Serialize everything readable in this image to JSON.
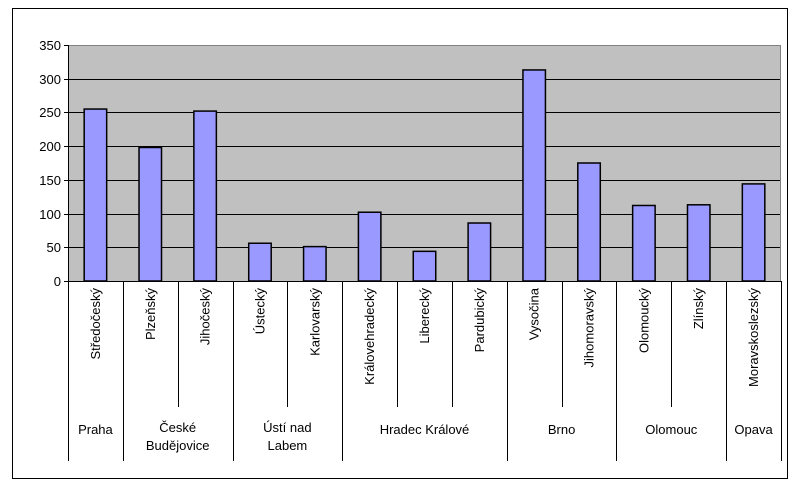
{
  "chart_data": {
    "type": "bar",
    "title": "",
    "xlabel": "",
    "ylabel": "",
    "ylim": [
      0,
      350
    ],
    "yticks": [
      0,
      50,
      100,
      150,
      200,
      250,
      300,
      350
    ],
    "grid": true,
    "legend": "none",
    "categories": [
      "Středočeský",
      "Plzeňský",
      "Jihočeský",
      "Ústecký",
      "Karlovarský",
      "Královehradecký",
      "Liberecký",
      "Pardubický",
      "Vysočina",
      "Jihomoravský",
      "Olomoucký",
      "Zlínský",
      "Moravskoslezský"
    ],
    "values": [
      255,
      198,
      252,
      56,
      51,
      102,
      44,
      86,
      313,
      175,
      112,
      113,
      144
    ],
    "groups": [
      {
        "lines": [
          "Praha"
        ],
        "count": 1
      },
      {
        "lines": [
          "České",
          "Budějovice"
        ],
        "count": 2
      },
      {
        "lines": [
          "Ústí nad",
          "Labem"
        ],
        "count": 2
      },
      {
        "lines": [
          "Hradec Králové"
        ],
        "count": 3
      },
      {
        "lines": [
          "Brno"
        ],
        "count": 2
      },
      {
        "lines": [
          "Olomouc"
        ],
        "count": 2
      },
      {
        "lines": [
          "Opava"
        ],
        "count": 1
      }
    ],
    "colors": {
      "bar_fill": "#9999ff",
      "bar_stroke": "#000000",
      "plot_background": "#c0c0c0",
      "grid": "#000000"
    }
  }
}
